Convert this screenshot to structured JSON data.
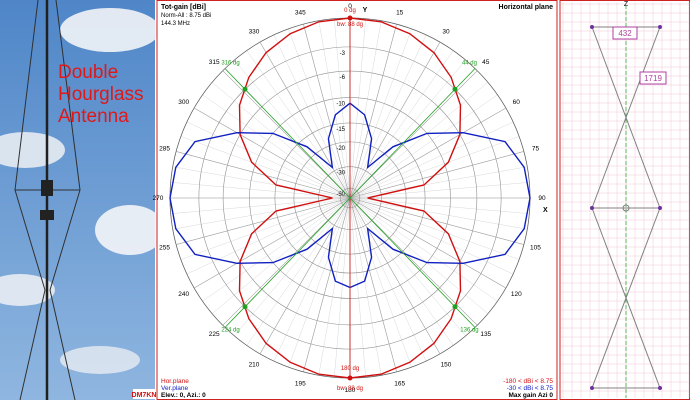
{
  "photo": {
    "title_lines": [
      "Double",
      "Hourglass",
      "Antenna"
    ],
    "credit": "DM7KN"
  },
  "chart_data": {
    "type": "polar",
    "title": "Tot-gain [dBi]",
    "subtitle_lines": [
      "Norm-All : 8.75 dBi",
      "144.3 MHz"
    ],
    "plane": "Horizontal plane",
    "y_axis_label": "Y",
    "x_axis_label": "X",
    "r_scale": "arrl",
    "rmax": 0,
    "rticks": [
      -3,
      -6,
      -10,
      -15,
      -20,
      -30,
      -50
    ],
    "thetaticks": [
      0,
      15,
      30,
      45,
      60,
      75,
      90,
      105,
      120,
      135,
      150,
      165,
      180,
      195,
      210,
      225,
      240,
      255,
      270,
      285,
      300,
      315,
      330,
      345
    ],
    "theta": [
      0,
      10,
      20,
      30,
      40,
      50,
      60,
      70,
      80,
      90,
      100,
      110,
      120,
      130,
      140,
      150,
      160,
      170,
      180,
      190,
      200,
      210,
      220,
      230,
      240,
      250,
      260,
      270,
      280,
      290,
      300,
      310,
      320,
      330,
      340,
      350
    ],
    "series": [
      {
        "name": "Hor.plane",
        "color": "#d01010",
        "range_label": "-180 < dBi < 8.75",
        "values": [
          0,
          -0.1,
          -0.5,
          -1.2,
          -2.3,
          -3.8,
          -6,
          -9.3,
          -15,
          -40,
          -15,
          -9.3,
          -6,
          -3.8,
          -2.3,
          -1.2,
          -0.5,
          -0.1,
          0,
          -0.1,
          -0.5,
          -1.2,
          -2.3,
          -3.8,
          -6,
          -9.3,
          -15,
          -40,
          -15,
          -9.3,
          -6,
          -3.8,
          -2.3,
          -1.2,
          -0.5,
          -0.1
        ]
      },
      {
        "name": "Ver.plane",
        "color": "#1020c0",
        "range_label": "-30 < dBi < 8.75",
        "values": [
          -11,
          -13,
          -18,
          -28,
          -17,
          -10,
          -5.5,
          -1.5,
          -0.3,
          0,
          -0.3,
          -1.5,
          -5.5,
          -10,
          -17,
          -28,
          -18,
          -13,
          -12,
          -13,
          -18,
          -28,
          -17,
          -10,
          -5.5,
          -1.5,
          -0.3,
          0,
          -0.3,
          -1.5,
          -5.5,
          -10,
          -17,
          -28,
          -18,
          -13
        ]
      }
    ],
    "markers": [
      {
        "angle": 0,
        "value": 0,
        "color": "#d01010",
        "label": "0 dg",
        "note": "bw: 88 dg"
      },
      {
        "angle": 180,
        "value": 0,
        "color": "#d01010",
        "label": "180 dg",
        "note": "bw: 88 dg"
      },
      {
        "angle": 44,
        "value": -3,
        "color": "#20a020",
        "label": "44 dg"
      },
      {
        "angle": 136,
        "value": -3,
        "color": "#20a020",
        "label": "136 dg"
      },
      {
        "angle": 224,
        "value": -3,
        "color": "#20a020",
        "label": "224 dg"
      },
      {
        "angle": 316,
        "value": -3,
        "color": "#20a020",
        "label": "316 dg"
      }
    ],
    "footer": "Elev.: 0, Azi.: 0",
    "max_gain": "Max gain Azi 0"
  },
  "geometry": {
    "axis_label": "Z",
    "dimensions": [
      432,
      1719
    ]
  }
}
